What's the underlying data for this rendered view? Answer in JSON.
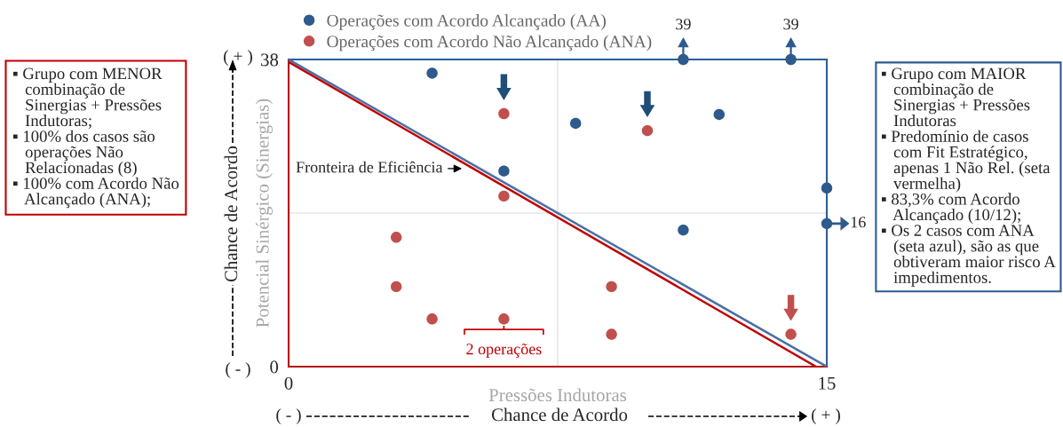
{
  "chart_data": {
    "type": "scatter",
    "xlabel": "Pressões Indutoras",
    "ylabel": "Potencial Sinérgico (Sinergias)",
    "xlim": [
      0,
      15
    ],
    "ylim": [
      0,
      38
    ],
    "xticks": [
      0,
      15
    ],
    "yticks": [
      0,
      38
    ],
    "series": [
      {
        "name": "Operações com Acordo Alcançado (AA)",
        "color": "#2e5a8c",
        "marker": "circle",
        "x": [
          4,
          6,
          8,
          12,
          11,
          14,
          15,
          15,
          11
        ],
        "values": [
          36.3,
          24.2,
          30.1,
          31.2,
          38,
          38,
          22.1,
          17.7,
          16.9
        ]
      },
      {
        "name": "Operações com Acordo Não Alcançado (ANA)",
        "color": "#c0504d",
        "marker": "circle",
        "x": [
          6,
          10,
          14,
          6,
          3,
          3,
          4,
          6,
          9,
          9
        ],
        "values": [
          31.3,
          29.2,
          4,
          21.1,
          16,
          9.9,
          5.9,
          5.9,
          9.9,
          4
        ]
      },
      {
        "type": "line",
        "color": "#4a6fa5",
        "x": [
          0,
          15
        ],
        "values": [
          38,
          0
        ]
      },
      {
        "type": "line",
        "color": "#c00000",
        "x": [
          0,
          14.7
        ],
        "values": [
          37.7,
          0
        ]
      }
    ],
    "ref_lines": [
      {
        "axis": "x",
        "value": 7.5,
        "color": "#d9d9d9"
      },
      {
        "axis": "y",
        "value": 19,
        "color": "#d9d9d9"
      }
    ],
    "legend": "top left",
    "annotations": [
      "▪ Grupo com MENOR\n   combinação de\n   Sinergias + Pressões\n   Indutoras;\n▪ 100% dos casos são\n   operações Não\n   Relacionadas (8)\n▪ 100% com Acordo Não\n   Alcançado (ANA);",
      "▪ Grupo com MAIOR\n   combinação de\n   Sinergias + Pressões\n   Indutoras\n▪ Predomínio de casos\n   com Fit Estratégico,\n   apenas 1 Não Rel. (seta\n   vermelha)\n▪ 83,3% com Acordo\n   Alcançado (10/12);\n▪ Os 2 casos com ANA\n   (seta azul), são as que\n   obtiveram maior risco A\n   impedimentos.",
      {
        "text": "Fronteira de Eficiência",
        "x": 4.9,
        "y": 24.5
      },
      {
        "text": "2 operações",
        "x": 6,
        "y": 5.9
      },
      {
        "text": "39",
        "x": 11,
        "y": 38
      },
      {
        "text": "39",
        "x": 14,
        "y": 38
      },
      {
        "text": "16",
        "x": 15,
        "y": 17.7
      },
      "Chance de Acordo",
      "Chance de Acordo",
      "( + )",
      "( - )",
      "( - )",
      "( + )"
    ]
  }
}
